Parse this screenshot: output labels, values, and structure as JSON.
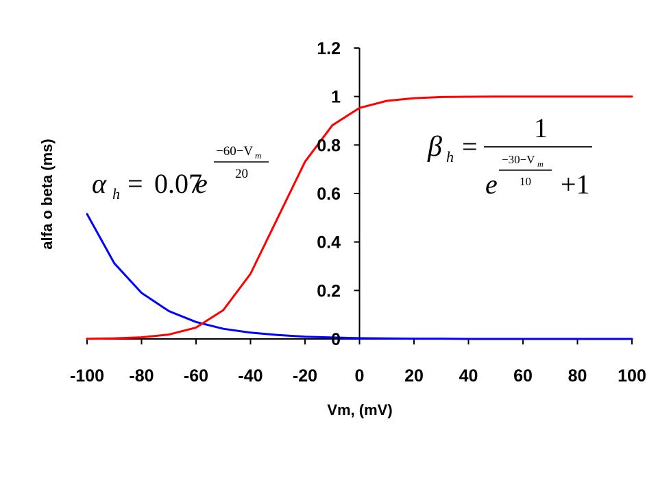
{
  "chart_data": {
    "type": "line",
    "title": "",
    "xlabel": "Vm, (mV)",
    "ylabel": "alfa o beta (ms)",
    "xlim": [
      -100,
      100
    ],
    "ylim": [
      0,
      1.2
    ],
    "x_ticks": [
      -100,
      -80,
      -60,
      -40,
      -20,
      0,
      20,
      40,
      60,
      80,
      100
    ],
    "y_ticks": [
      0,
      0.2,
      0.4,
      0.6,
      0.8,
      1,
      1.2
    ],
    "x_tick_labels": [
      "-100",
      "-80",
      "-60",
      "-40",
      "-20",
      "0",
      "20",
      "40",
      "60",
      "80",
      "100"
    ],
    "y_tick_labels": [
      "0",
      "0.2",
      "0.4",
      "0.6",
      "0.8",
      "1",
      "1.2"
    ],
    "grid": false,
    "legend": "none",
    "x": [
      -100,
      -90,
      -80,
      -70,
      -60,
      -50,
      -40,
      -30,
      -20,
      -10,
      0,
      10,
      20,
      30,
      40,
      50,
      60,
      70,
      80,
      90,
      100
    ],
    "series": [
      {
        "color": "#0000ff",
        "values": [
          0.515,
          0.312,
          0.19,
          0.115,
          0.07,
          0.042,
          0.026,
          0.016,
          0.009,
          0.006,
          0.003,
          0.002,
          0.001,
          0.001,
          0.0,
          0.0,
          0.0,
          0.0,
          0.0,
          0.0,
          0.0
        ]
      },
      {
        "color": "#ff0000",
        "values": [
          0.0009,
          0.0025,
          0.0067,
          0.018,
          0.047,
          0.119,
          0.269,
          0.5,
          0.731,
          0.881,
          0.953,
          0.982,
          0.993,
          0.998,
          0.999,
          1.0,
          1.0,
          1.0,
          1.0,
          1.0,
          1.0
        ]
      }
    ],
    "annotations": {
      "alpha": {
        "lhs_symbol": "α",
        "lhs_sub": "h",
        "equals": "=",
        "coef": "0.07",
        "base": "e",
        "exp_num": "−60−V",
        "exp_num_sub": "m",
        "exp_den": "20"
      },
      "beta": {
        "lhs_symbol": "β",
        "lhs_sub": "h",
        "equals": "=",
        "numerator": "1",
        "base": "e",
        "exp_num": "−30−V",
        "exp_num_sub": "m",
        "exp_den": "10",
        "plus_one": "+1"
      }
    }
  }
}
